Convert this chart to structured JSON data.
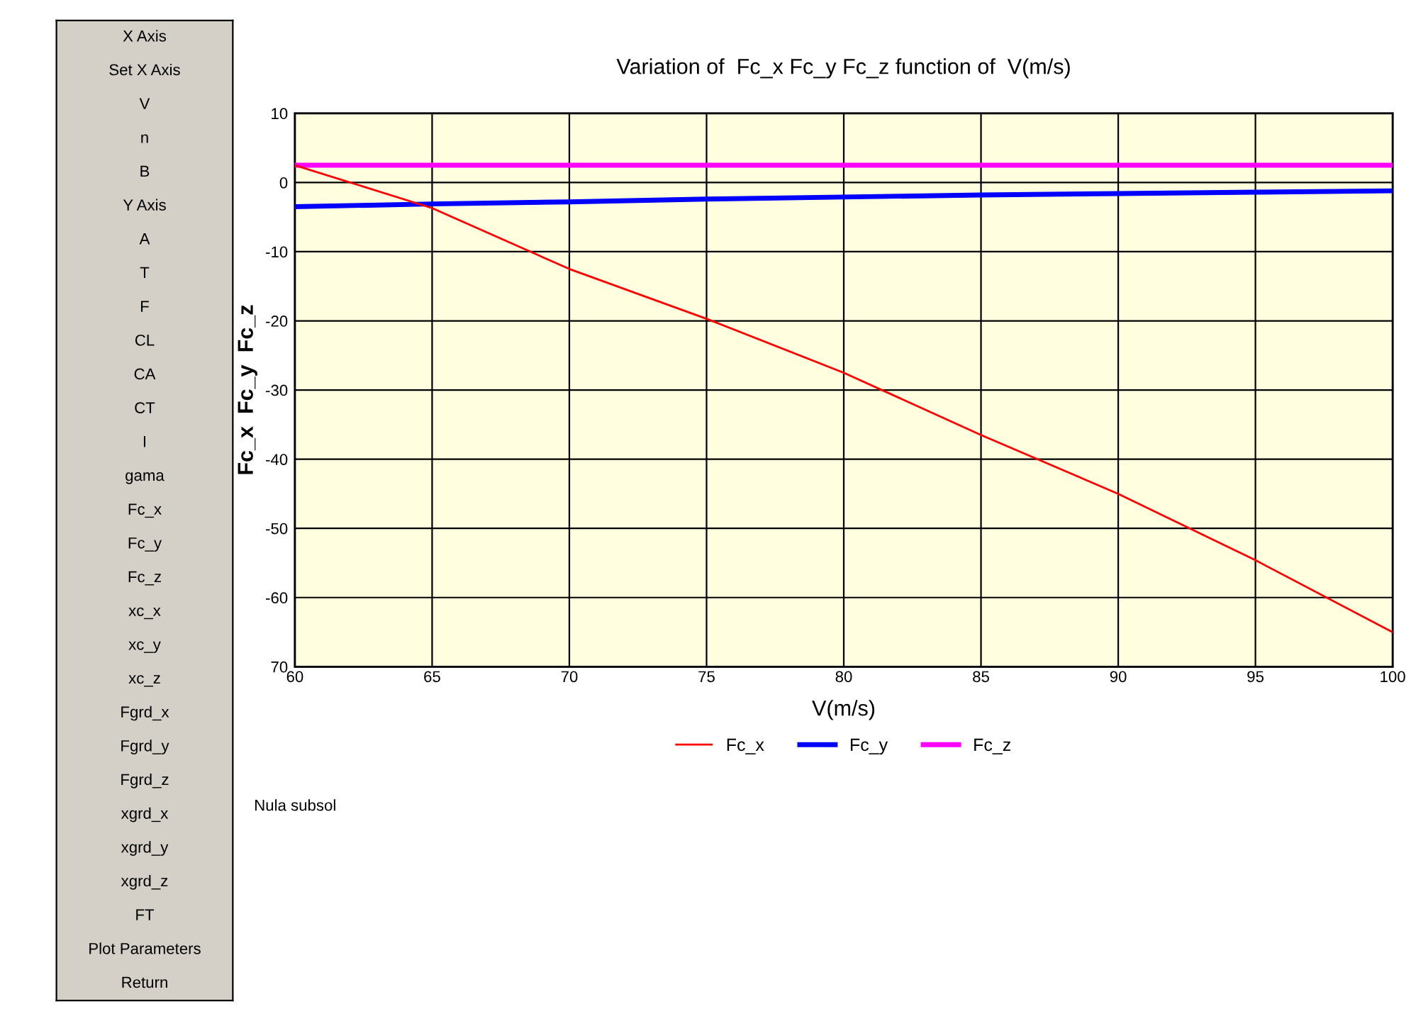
{
  "chart_data": [
    {
      "type": "other",
      "annotations": [
        "X Axis",
        "Set X Axis",
        "V",
        "n",
        "B",
        "Y Axis",
        "A",
        "T",
        "F",
        "CL",
        "CA",
        "CT",
        "I",
        "gama",
        "Fc_x",
        "Fc_y",
        "Fc_z",
        "xc_x",
        "xc_y",
        "xc_z",
        "Fgrd_x",
        "Fgrd_y",
        "Fgrd_z",
        "xgrd_x",
        "xgrd_y",
        "xgrd_z",
        "FT",
        "Plot Parameters",
        "Return"
      ]
    },
    {
      "type": "line",
      "title": "Variation of  Fc_x Fc_y Fc_z function of  V(m/s)",
      "xlabel": "V(m/s)",
      "ylabel": "Fc_x  Fc_y  Fc_z",
      "x": [
        60,
        65,
        70,
        75,
        80,
        85,
        90,
        95,
        100
      ],
      "series": [
        {
          "name": "Fc_x",
          "color": "#ff0000",
          "values": [
            2.5,
            -3.7,
            -12.5,
            -19.7,
            -27.5,
            -36.5,
            -45,
            -54.6,
            -65
          ]
        },
        {
          "name": "Fc_y",
          "color": "#0000ff",
          "values": [
            -3.5,
            -3.1,
            -2.8,
            -2.4,
            -2.1,
            -1.8,
            -1.6,
            -1.4,
            -1.2
          ]
        },
        {
          "name": "Fc_z",
          "color": "#ff00ff",
          "values": [
            2.5,
            2.5,
            2.5,
            2.5,
            2.5,
            2.5,
            2.5,
            2.5,
            2.5
          ]
        }
      ],
      "xlim": [
        60,
        100
      ],
      "xticks": [
        60,
        65,
        70,
        75,
        80,
        85,
        90,
        95,
        100
      ],
      "ylim": [
        -70,
        10
      ],
      "yticks": [
        10,
        0,
        -10,
        -20,
        -30,
        -40,
        -50,
        -60,
        {
          "value": -70,
          "label": "70"
        }
      ],
      "grid": true,
      "legend": "bottom",
      "marker": "none",
      "line_style": "solid",
      "annotations": [
        "Nula subsol"
      ]
    }
  ]
}
